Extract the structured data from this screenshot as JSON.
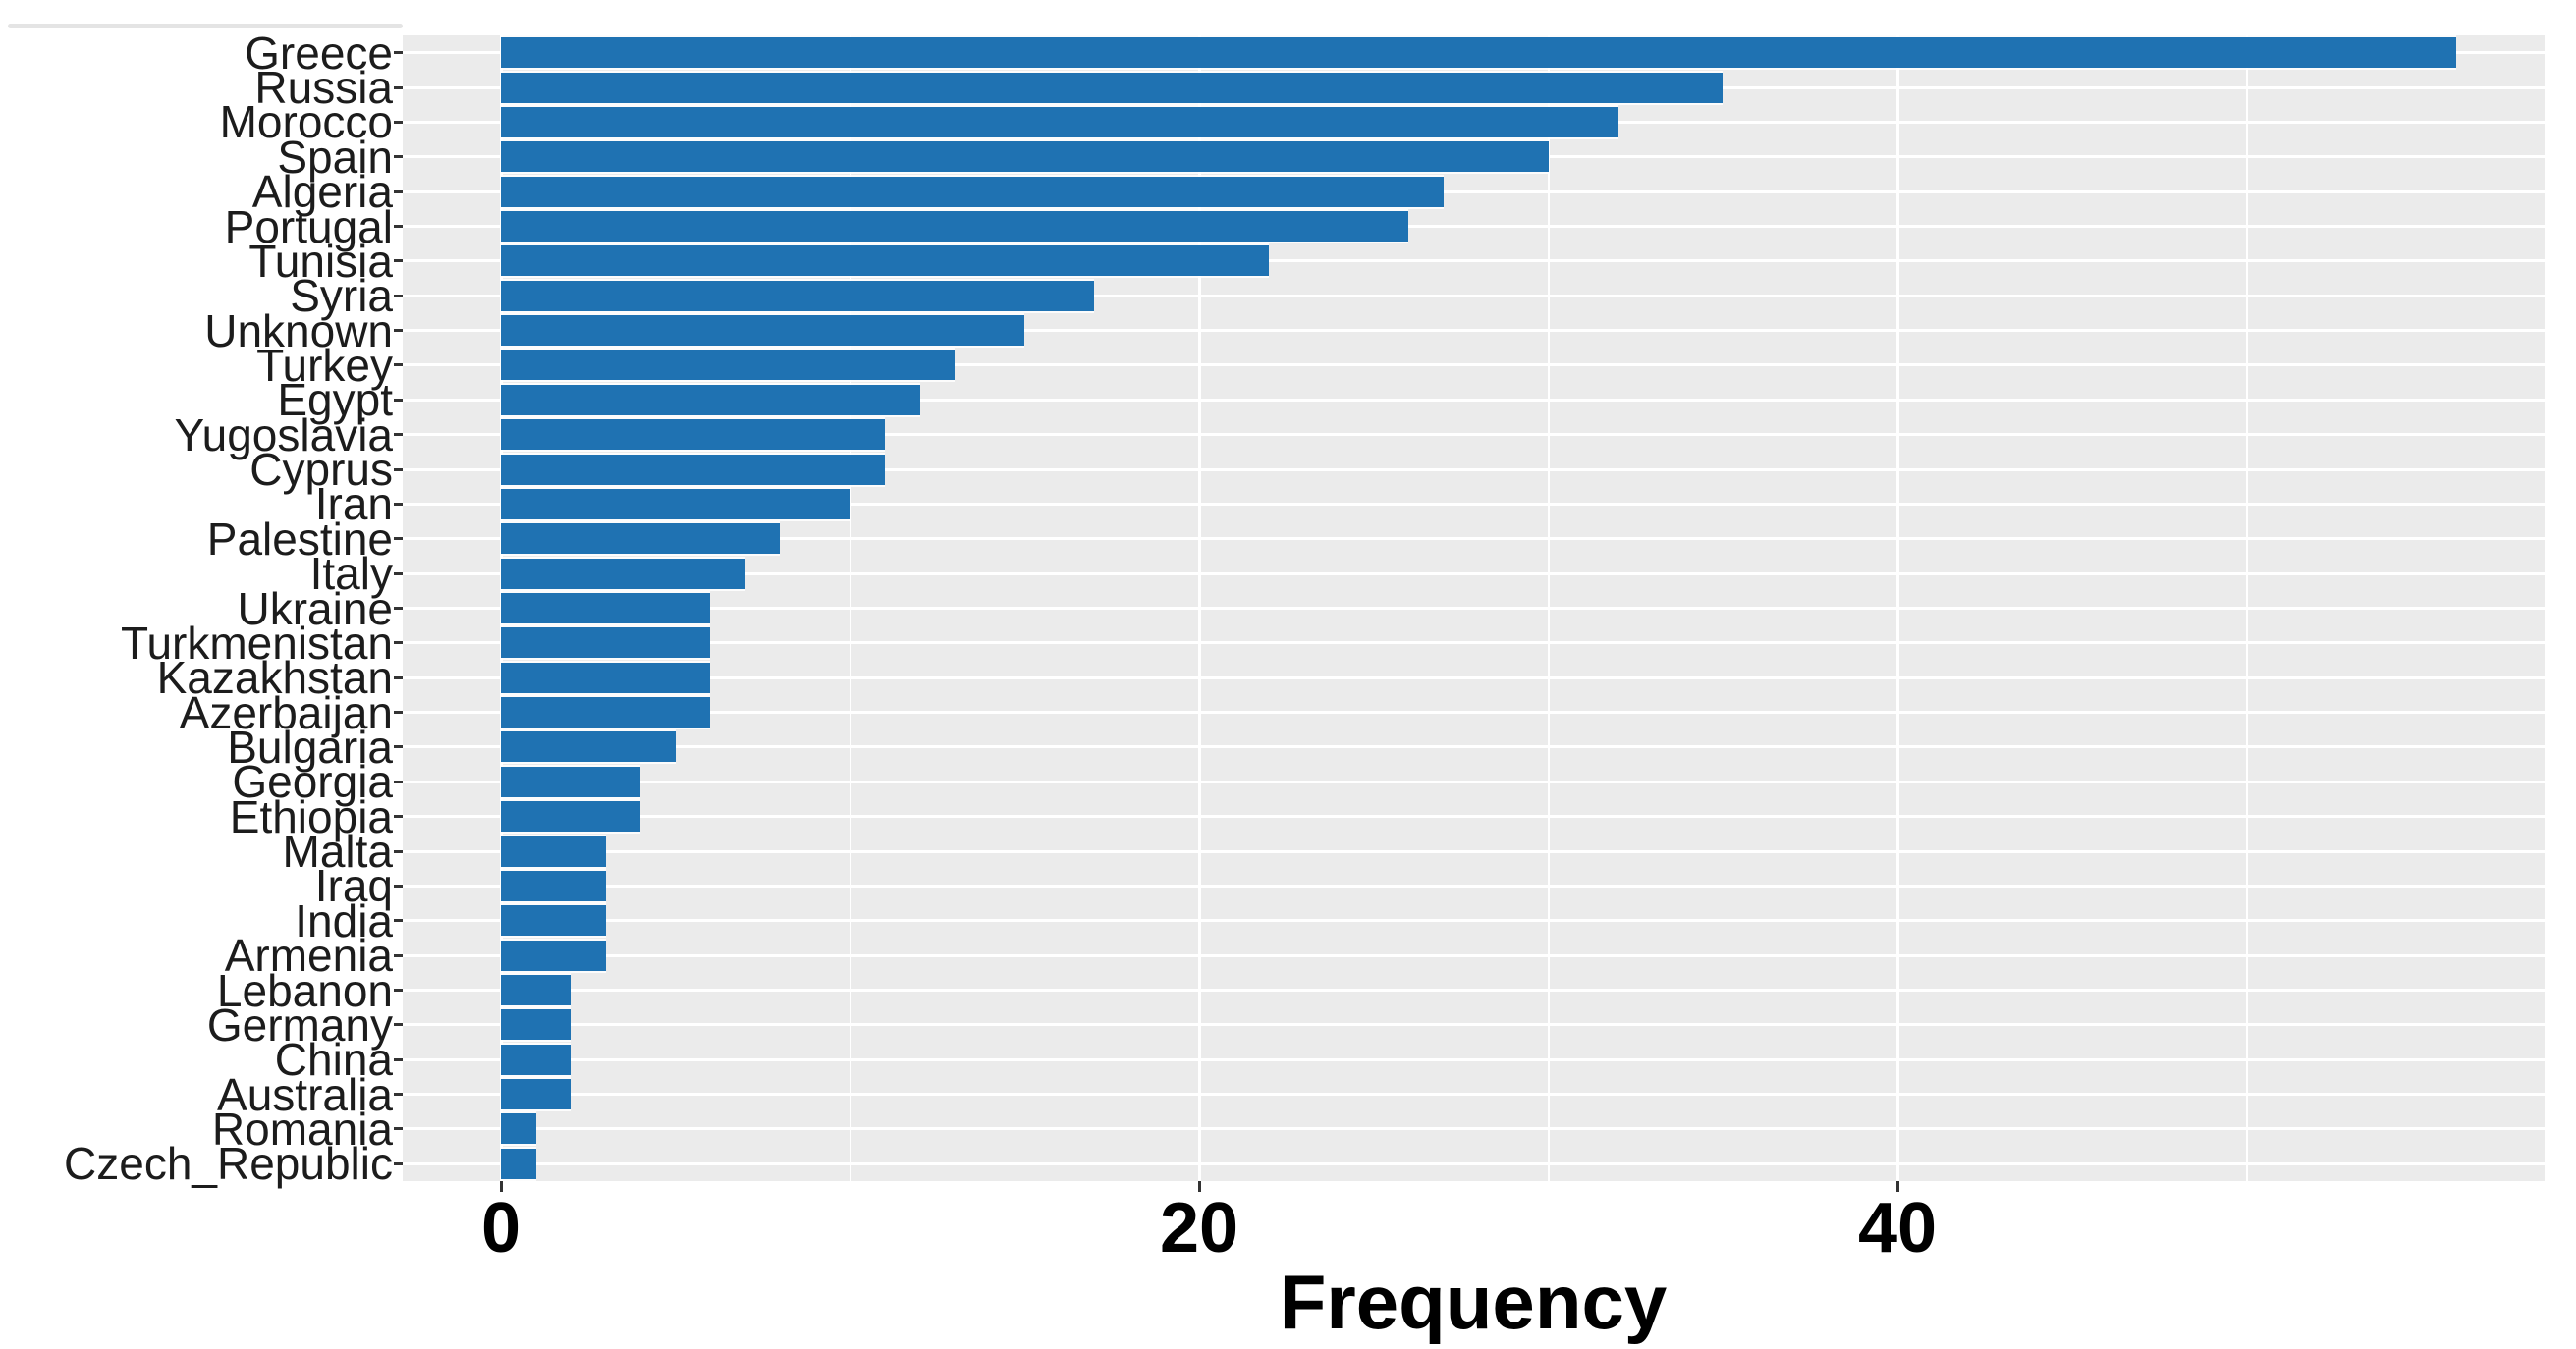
{
  "chart_data": {
    "type": "bar",
    "orientation": "horizontal",
    "title": "",
    "xlabel": "Frequency",
    "ylabel": "",
    "categories": [
      "Greece",
      "Russia",
      "Morocco",
      "Spain",
      "Algeria",
      "Portugal",
      "Tunisia",
      "Syria",
      "Unknown",
      "Turkey",
      "Egypt",
      "Yugoslavia",
      "Cyprus",
      "Iran",
      "Palestine",
      "Italy",
      "Ukraine",
      "Turkmenistan",
      "Kazakhstan",
      "Azerbaijan",
      "Bulgaria",
      "Georgia",
      "Ethiopia",
      "Malta",
      "Iraq",
      "India",
      "Armenia",
      "Lebanon",
      "Germany",
      "China",
      "Australia",
      "Romania",
      "Czech_Republic"
    ],
    "values": [
      56,
      35,
      32,
      30,
      27,
      26,
      22,
      17,
      15,
      13,
      12,
      11,
      11,
      10,
      8,
      7,
      6,
      6,
      6,
      6,
      5,
      4,
      4,
      3,
      3,
      3,
      3,
      2,
      2,
      2,
      2,
      1,
      1
    ],
    "x_ticks": [
      0,
      20,
      40
    ],
    "x_minor_gridlines": [
      10,
      30,
      50
    ],
    "xlim": [
      -2.8,
      58.9
    ],
    "grid": true,
    "legend": false,
    "colors": {
      "bar": "#1f72b2",
      "panel_background": "#ebebeb",
      "gridline": "#ffffff",
      "axis_text": "#1c1c1c",
      "tick_mark": "#333333",
      "page_background": "#ffffff"
    }
  }
}
